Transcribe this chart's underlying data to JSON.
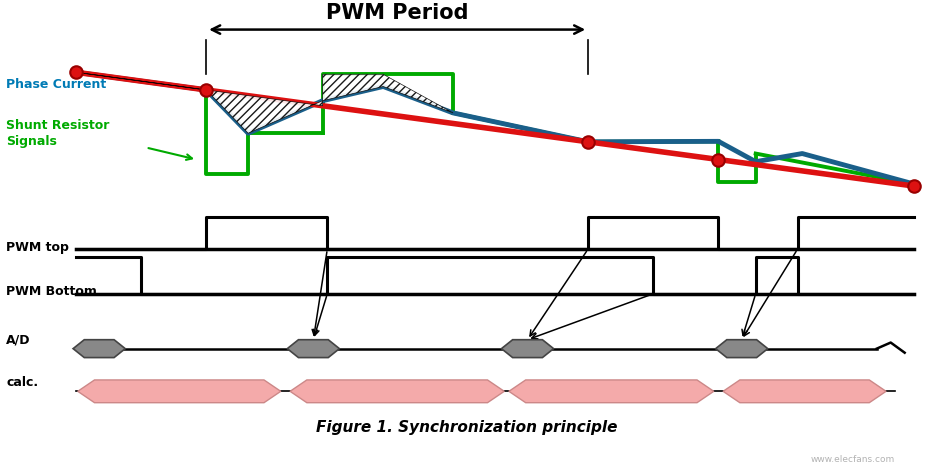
{
  "title": "Figure 1. Synchronization principle",
  "pwm_period_label": "PWM Period",
  "phase_current_label": "Phase Current",
  "shunt_resistor_label": "Shunt Resistor\nSignals",
  "pwm_top_label": "PWM top",
  "pwm_bottom_label": "PWM Bottom",
  "ad_label": "A/D",
  "calc_label": "calc.",
  "bg_color": "#ffffff",
  "phase_current_color": "#dd1111",
  "blue_line_color": "#1a5f8a",
  "green_line_color": "#00aa00",
  "dot_color": "#dd1111",
  "pwm_color": "#000000",
  "ad_marker_color": "#888888",
  "calc_color": "#f4a0a0",
  "arrow_color": "#000000",
  "phase_label_color": "#007bb5",
  "shunt_label_color": "#00aa00"
}
